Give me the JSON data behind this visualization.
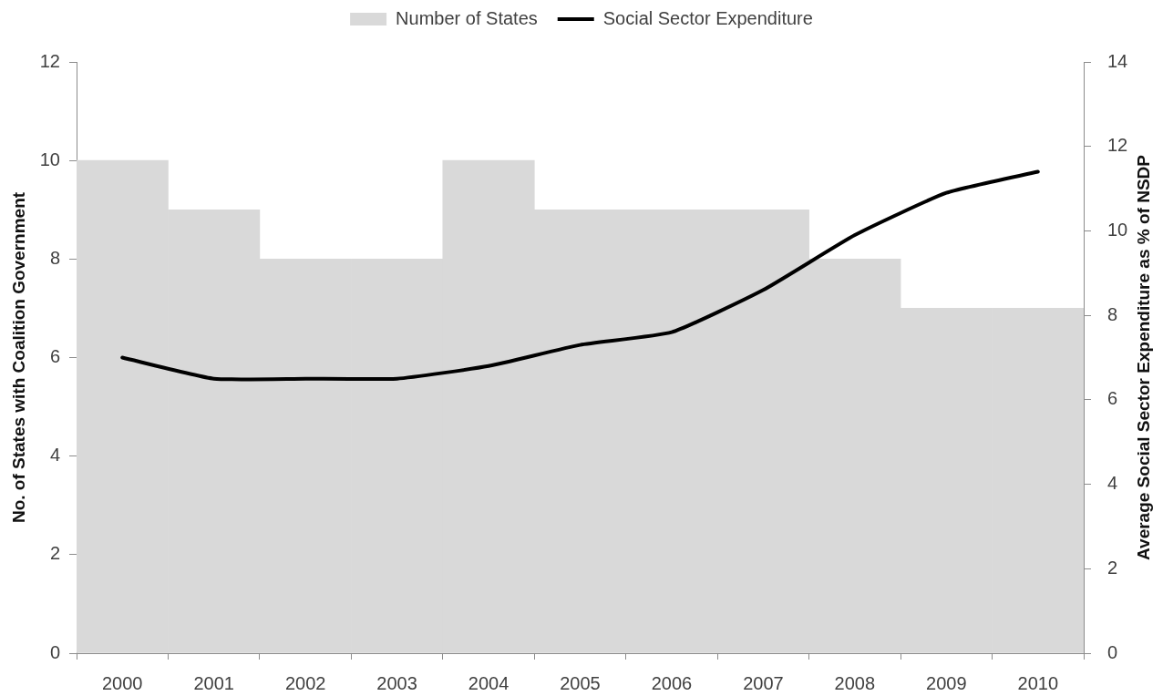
{
  "chart_data": {
    "type": "bar",
    "categories": [
      "2000",
      "2001",
      "2002",
      "2003",
      "2004",
      "2005",
      "2006",
      "2007",
      "2008",
      "2009",
      "2010"
    ],
    "ylabel": "No. of States with Coalition Government",
    "y2label": "Average Social Sector Expenditure as % of NSDP",
    "ylim": [
      0,
      12
    ],
    "yticks": [
      0,
      2,
      4,
      6,
      8,
      10,
      12
    ],
    "y2lim": [
      0,
      14
    ],
    "y2ticks": [
      0,
      2,
      4,
      6,
      8,
      10,
      12,
      14
    ],
    "series": [
      {
        "name": "Number of States",
        "color": "#d9d9d9",
        "values": [
          10,
          9,
          8,
          8,
          10,
          9,
          9,
          9,
          8,
          7,
          7
        ]
      },
      {
        "name": "Social Sector Expenditure",
        "type": "line",
        "axis": "y2",
        "color": "#000000",
        "values": [
          7.0,
          6.5,
          6.5,
          6.5,
          6.8,
          7.3,
          7.6,
          8.6,
          9.9,
          10.9,
          11.4
        ]
      }
    ],
    "legend": "top",
    "grid": false,
    "marker": "none",
    "line_style": "solid"
  }
}
